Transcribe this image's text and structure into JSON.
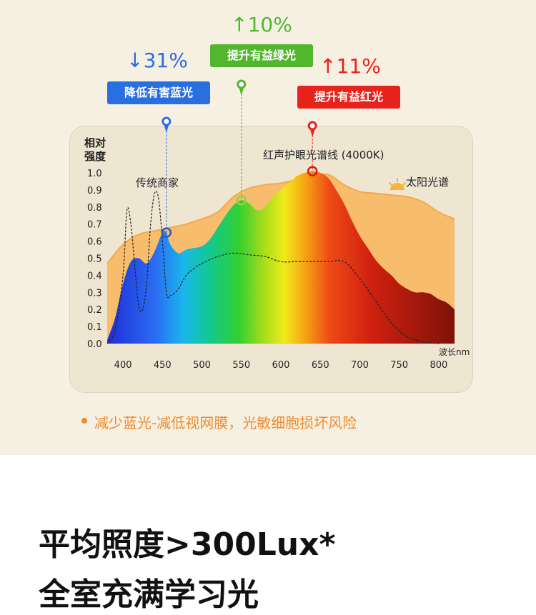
{
  "badges": {
    "blue": {
      "pct": "↓31%",
      "label": "降低有害蓝光",
      "color": "#2a6fe0"
    },
    "green": {
      "pct": "↑10%",
      "label": "提升有益绿光",
      "color": "#52b72e"
    },
    "red": {
      "pct": "↑11%",
      "label": "提升有益红光",
      "color": "#e8231c"
    }
  },
  "note": "减少蓝光-减低视网膜，光敏细胞损坏风险",
  "headline": {
    "line1": "平均照度>300Lux*",
    "line2": "全室充满学习光"
  },
  "chart_data": {
    "type": "area",
    "ylabel": "相对\n强度",
    "xlabel": "波长nm",
    "xlim": [
      380,
      820
    ],
    "ylim": [
      0,
      1.0
    ],
    "x_ticks": [
      400,
      450,
      500,
      550,
      600,
      650,
      700,
      750,
      800
    ],
    "y_ticks": [
      0.0,
      0.1,
      0.2,
      0.3,
      0.4,
      0.5,
      0.6,
      0.7,
      0.8,
      0.9,
      1.0
    ],
    "series": [
      {
        "name": "太阳光谱",
        "color": "#f4a94a",
        "x": [
          380,
          400,
          420,
          440,
          460,
          480,
          500,
          520,
          540,
          560,
          580,
          600,
          620,
          640,
          660,
          680,
          700,
          720,
          740,
          760,
          780,
          800,
          820
        ],
        "y": [
          0.47,
          0.58,
          0.64,
          0.66,
          0.68,
          0.7,
          0.73,
          0.77,
          0.86,
          0.91,
          0.93,
          0.94,
          0.96,
          0.98,
          0.99,
          0.93,
          0.89,
          0.88,
          0.87,
          0.86,
          0.83,
          0.77,
          0.73
        ]
      },
      {
        "name": "红声护眼光谱线 (4000K)",
        "color": "spectrum",
        "x": [
          380,
          390,
          400,
          410,
          420,
          430,
          440,
          450,
          455,
          460,
          470,
          480,
          490,
          500,
          510,
          520,
          530,
          540,
          550,
          560,
          570,
          580,
          590,
          600,
          610,
          620,
          630,
          640,
          650,
          660,
          670,
          680,
          690,
          700,
          710,
          720,
          730,
          740,
          750,
          760,
          770,
          780,
          790,
          800,
          810,
          820
        ],
        "y": [
          0.02,
          0.15,
          0.35,
          0.48,
          0.5,
          0.47,
          0.54,
          0.65,
          0.65,
          0.58,
          0.53,
          0.55,
          0.56,
          0.57,
          0.61,
          0.68,
          0.75,
          0.81,
          0.84,
          0.82,
          0.78,
          0.8,
          0.86,
          0.9,
          0.94,
          0.98,
          1.0,
          1.01,
          1.0,
          0.97,
          0.9,
          0.82,
          0.72,
          0.63,
          0.56,
          0.49,
          0.44,
          0.4,
          0.35,
          0.32,
          0.3,
          0.3,
          0.29,
          0.26,
          0.24,
          0.2
        ]
      },
      {
        "name": "传统商家",
        "color": "#222222",
        "dashed": true,
        "x": [
          380,
          390,
          400,
          405,
          410,
          415,
          420,
          425,
          430,
          435,
          440,
          445,
          450,
          455,
          460,
          470,
          480,
          490,
          500,
          520,
          540,
          560,
          580,
          600,
          620,
          640,
          660,
          680,
          700,
          720,
          740,
          760,
          780,
          800
        ],
        "y": [
          0.0,
          0.08,
          0.4,
          0.78,
          0.7,
          0.45,
          0.22,
          0.2,
          0.35,
          0.7,
          0.88,
          0.85,
          0.6,
          0.3,
          0.28,
          0.32,
          0.4,
          0.44,
          0.47,
          0.51,
          0.53,
          0.52,
          0.51,
          0.48,
          0.48,
          0.48,
          0.48,
          0.48,
          0.38,
          0.25,
          0.12,
          0.04,
          0.01,
          0.0
        ]
      }
    ],
    "labels": {
      "traditional": "传统商家",
      "led": "红声护眼光谱线 (4000K)",
      "sun": "太阳光谱"
    },
    "markers": [
      {
        "x": 455,
        "y": 0.65,
        "color": "#2a6fe0",
        "target": "blue"
      },
      {
        "x": 550,
        "y": 0.84,
        "color": "#52b72e",
        "target": "green"
      },
      {
        "x": 640,
        "y": 1.01,
        "color": "#e8231c",
        "target": "red"
      }
    ]
  }
}
